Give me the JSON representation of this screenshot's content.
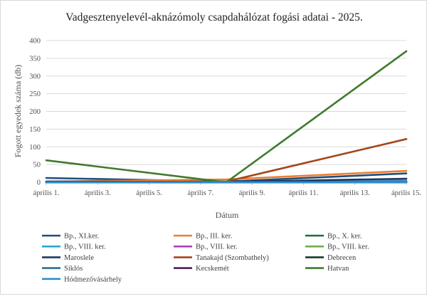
{
  "chart_data": {
    "type": "line",
    "title": "Vadgesztenyelevél-aknázómoly csapdahálózat fogási adatai - 2025.",
    "xlabel": "Dátum",
    "ylabel": "Fogott egyedek száma (db)",
    "ylim": [
      0,
      400
    ],
    "yticks": [
      0,
      50,
      100,
      150,
      200,
      250,
      300,
      350,
      400
    ],
    "xlim": [
      "2025-04-01",
      "2025-04-15"
    ],
    "xticks": [
      {
        "date": "2025-04-01",
        "label": "április 1."
      },
      {
        "date": "2025-04-03",
        "label": "április 3."
      },
      {
        "date": "2025-04-05",
        "label": "április 5."
      },
      {
        "date": "2025-04-07",
        "label": "április 7."
      },
      {
        "date": "2025-04-09",
        "label": "április 9."
      },
      {
        "date": "2025-04-11",
        "label": "április 11."
      },
      {
        "date": "2025-04-13",
        "label": "április 13."
      },
      {
        "date": "2025-04-15",
        "label": "április 15."
      }
    ],
    "grid": "horizontal",
    "legend_position": "bottom",
    "series": [
      {
        "name": "Bp., XI.ker.",
        "color": "#1f4e79",
        "points": [
          [
            "2025-04-01",
            12
          ],
          [
            "2025-04-08",
            2
          ],
          [
            "2025-04-15",
            25
          ]
        ]
      },
      {
        "name": "Bp., III. ker.",
        "color": "#ed7d31",
        "points": [
          [
            "2025-04-01",
            2
          ],
          [
            "2025-04-08",
            8
          ],
          [
            "2025-04-15",
            32
          ]
        ]
      },
      {
        "name": "Bp., X. ker.",
        "color": "#1e6b3a",
        "points": [
          [
            "2025-04-01",
            0
          ],
          [
            "2025-04-08",
            0
          ],
          [
            "2025-04-15",
            3
          ]
        ]
      },
      {
        "name": "Bp., VIII. ker.",
        "color": "#2ea3d6",
        "points": [
          [
            "2025-04-01",
            2
          ],
          [
            "2025-04-08",
            1
          ],
          [
            "2025-04-15",
            5
          ]
        ]
      },
      {
        "name": "Bp., VIII. ker.",
        "color": "#b03fb8",
        "points": [
          [
            "2025-04-01",
            0
          ],
          [
            "2025-04-08",
            0
          ],
          [
            "2025-04-15",
            2
          ]
        ]
      },
      {
        "name": "Bp., VIII. ker.",
        "color": "#70ad47",
        "points": [
          [
            "2025-04-01",
            0
          ],
          [
            "2025-04-08",
            0
          ],
          [
            "2025-04-15",
            1
          ]
        ]
      },
      {
        "name": "Maroslele",
        "color": "#203864",
        "points": [
          [
            "2025-04-01",
            2
          ],
          [
            "2025-04-08",
            1
          ],
          [
            "2025-04-15",
            10
          ]
        ]
      },
      {
        "name": "Tanakajd (Szombathely)",
        "color": "#a5461b",
        "points": [
          [
            "2025-04-01",
            0
          ],
          [
            "2025-04-08",
            2
          ],
          [
            "2025-04-15",
            122
          ]
        ]
      },
      {
        "name": "Debrecen",
        "color": "#153a22",
        "points": [
          [
            "2025-04-01",
            0
          ],
          [
            "2025-04-08",
            0
          ],
          [
            "2025-04-15",
            0
          ]
        ]
      },
      {
        "name": "Siklós",
        "color": "#2e6f8e",
        "points": [
          [
            "2025-04-01",
            0
          ],
          [
            "2025-04-08",
            0
          ],
          [
            "2025-04-15",
            0
          ]
        ]
      },
      {
        "name": "Kecskemét",
        "color": "#4b1f5a",
        "points": [
          [
            "2025-04-01",
            0
          ],
          [
            "2025-04-08",
            0
          ],
          [
            "2025-04-15",
            0
          ]
        ]
      },
      {
        "name": "Hatvan",
        "color": "#3f7a2e",
        "points": [
          [
            "2025-04-01",
            62
          ],
          [
            "2025-04-08",
            0
          ],
          [
            "2025-04-15",
            370
          ]
        ]
      },
      {
        "name": "Hódmezővásárhely",
        "color": "#2b8fd0",
        "points": [
          [
            "2025-04-01",
            0
          ],
          [
            "2025-04-08",
            0
          ],
          [
            "2025-04-15",
            0
          ]
        ]
      }
    ]
  }
}
